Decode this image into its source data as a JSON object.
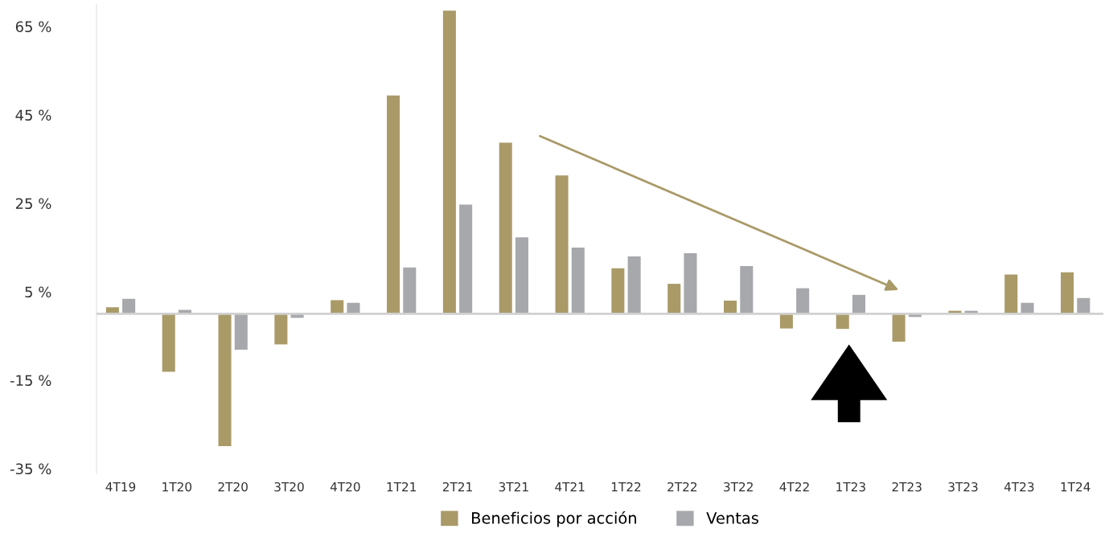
{
  "chart_data": {
    "type": "bar",
    "categories": [
      "4T19",
      "1T20",
      "2T20",
      "3T20",
      "4T20",
      "1T21",
      "2T21",
      "3T21",
      "4T21",
      "1T22",
      "2T22",
      "3T22",
      "4T22",
      "1T23",
      "2T23",
      "3T23",
      "4T23",
      "1T24"
    ],
    "series": [
      {
        "name": "Beneficios por acción",
        "color": "#a99a68",
        "values": [
          1.5,
          -13.1,
          -29.9,
          -6.9,
          3.1,
          49.4,
          68.6,
          38.7,
          31.3,
          10.3,
          6.8,
          3.0,
          -3.3,
          -3.4,
          -6.3,
          0.7,
          8.9,
          9.4
        ]
      },
      {
        "name": "Ventas",
        "color": "#a7a8ac",
        "values": [
          3.4,
          0.9,
          -8.1,
          -0.9,
          2.5,
          10.5,
          24.7,
          17.3,
          15.0,
          13.0,
          13.7,
          10.8,
          5.8,
          4.3,
          -0.7,
          0.7,
          2.5,
          3.6
        ]
      }
    ],
    "ylim": [
      -36,
      70
    ],
    "yticks": [
      {
        "value": -35,
        "label": "-35 %"
      },
      {
        "value": -15,
        "label": "-15 %"
      },
      {
        "value": 5,
        "label": "5 %"
      },
      {
        "value": 25,
        "label": "25 %"
      },
      {
        "value": 45,
        "label": "45 %"
      },
      {
        "value": 65,
        "label": "65 %"
      }
    ],
    "grid": false,
    "legend": "bottom"
  }
}
